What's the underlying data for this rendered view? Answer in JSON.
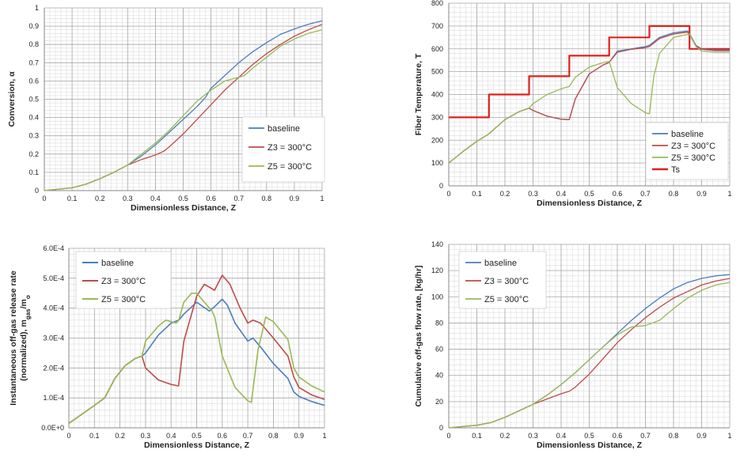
{
  "colors": {
    "baseline": "#4a7ebb",
    "z3": "#be4b48",
    "z5": "#98b954",
    "ts": "#e0201b",
    "grid": "#bdbdbd"
  },
  "chart_data": [
    {
      "type": "line",
      "id": "conversion",
      "title": "",
      "xlabel": "Dimensionless Distance, Z",
      "ylabel": "Conversion, α",
      "xlim": [
        0,
        1
      ],
      "ylim": [
        0,
        1
      ],
      "xticks": [
        "0",
        "0.1",
        "0.2",
        "0.3",
        "0.4",
        "0.5",
        "0.6",
        "0.7",
        "0.8",
        "0.9",
        "1"
      ],
      "yticks": [
        "0",
        "0.1",
        "0.2",
        "0.3",
        "0.4",
        "0.5",
        "0.6",
        "0.7",
        "0.8",
        "0.9",
        "1"
      ],
      "legend": [
        "baseline",
        "Z3 = 300°C",
        "Z5 = 300°C"
      ],
      "series": [
        {
          "name": "baseline",
          "color_key": "baseline",
          "width": 1.3,
          "x": [
            0,
            0.1,
            0.15,
            0.2,
            0.25,
            0.3,
            0.35,
            0.4,
            0.45,
            0.5,
            0.55,
            0.58,
            0.6,
            0.65,
            0.7,
            0.75,
            0.8,
            0.85,
            0.9,
            0.95,
            1.0
          ],
          "y": [
            0,
            0.015,
            0.035,
            0.065,
            0.1,
            0.14,
            0.19,
            0.25,
            0.32,
            0.39,
            0.46,
            0.51,
            0.56,
            0.63,
            0.7,
            0.76,
            0.81,
            0.855,
            0.885,
            0.91,
            0.93
          ]
        },
        {
          "name": "Z3 = 300°C",
          "color_key": "z3",
          "width": 1.3,
          "x": [
            0,
            0.1,
            0.15,
            0.2,
            0.25,
            0.3,
            0.35,
            0.4,
            0.43,
            0.45,
            0.5,
            0.55,
            0.6,
            0.65,
            0.7,
            0.75,
            0.8,
            0.85,
            0.9,
            0.95,
            1.0
          ],
          "y": [
            0,
            0.015,
            0.035,
            0.065,
            0.1,
            0.14,
            0.17,
            0.195,
            0.215,
            0.24,
            0.31,
            0.39,
            0.47,
            0.55,
            0.62,
            0.69,
            0.75,
            0.8,
            0.845,
            0.88,
            0.91
          ]
        },
        {
          "name": "Z5 = 300°C",
          "color_key": "z5",
          "width": 1.3,
          "x": [
            0,
            0.1,
            0.15,
            0.2,
            0.25,
            0.3,
            0.35,
            0.4,
            0.45,
            0.5,
            0.55,
            0.6,
            0.65,
            0.7,
            0.72,
            0.75,
            0.8,
            0.85,
            0.9,
            0.95,
            1.0
          ],
          "y": [
            0,
            0.015,
            0.035,
            0.065,
            0.1,
            0.14,
            0.2,
            0.26,
            0.33,
            0.41,
            0.49,
            0.55,
            0.6,
            0.62,
            0.63,
            0.67,
            0.73,
            0.79,
            0.83,
            0.86,
            0.88
          ]
        }
      ]
    },
    {
      "type": "line",
      "id": "fiber-temperature",
      "title": "",
      "xlabel": "Dimensionless Distance, Z",
      "ylabel": "Fiber Temperature, T",
      "xlim": [
        0,
        1
      ],
      "ylim": [
        0,
        800
      ],
      "xticks": [
        "0",
        "0.1",
        "0.2",
        "0.3",
        "0.4",
        "0.5",
        "0.6",
        "0.7",
        "0.8",
        "0.9",
        "1"
      ],
      "yticks": [
        "0",
        "100",
        "200",
        "300",
        "400",
        "500",
        "600",
        "700",
        "800"
      ],
      "legend": [
        "baseline",
        "Z3 = 300°C",
        "Z5 = 300°C",
        "Ts"
      ],
      "series": [
        {
          "name": "Ts",
          "color_key": "ts",
          "width": 2.2,
          "x": [
            0,
            0.143,
            0.143,
            0.286,
            0.286,
            0.429,
            0.429,
            0.571,
            0.571,
            0.714,
            0.714,
            0.857,
            0.857,
            1.0
          ],
          "y": [
            300,
            300,
            400,
            400,
            480,
            480,
            570,
            570,
            650,
            650,
            700,
            700,
            600,
            600
          ]
        },
        {
          "name": "baseline",
          "color_key": "baseline",
          "width": 1.3,
          "x": [
            0,
            0.05,
            0.1,
            0.14,
            0.2,
            0.25,
            0.286,
            0.3,
            0.35,
            0.4,
            0.429,
            0.45,
            0.5,
            0.55,
            0.57,
            0.6,
            0.65,
            0.7,
            0.714,
            0.75,
            0.8,
            0.85,
            0.86,
            0.88,
            0.9,
            0.95,
            1.0
          ],
          "y": [
            100,
            150,
            195,
            225,
            290,
            325,
            340,
            330,
            305,
            292,
            290,
            380,
            490,
            530,
            540,
            590,
            600,
            610,
            615,
            650,
            670,
            678,
            660,
            615,
            600,
            595,
            595
          ]
        },
        {
          "name": "Z3 = 300°C",
          "color_key": "z3",
          "width": 1.3,
          "x": [
            0,
            0.05,
            0.1,
            0.14,
            0.2,
            0.25,
            0.286,
            0.3,
            0.35,
            0.4,
            0.429,
            0.45,
            0.5,
            0.55,
            0.57,
            0.6,
            0.65,
            0.7,
            0.714,
            0.75,
            0.8,
            0.85,
            0.86,
            0.88,
            0.9,
            0.95,
            1.0
          ],
          "y": [
            100,
            150,
            195,
            225,
            290,
            325,
            340,
            330,
            305,
            292,
            290,
            380,
            490,
            530,
            540,
            585,
            598,
            605,
            610,
            645,
            665,
            673,
            655,
            612,
            598,
            592,
            592
          ]
        },
        {
          "name": "Z5 = 300°C",
          "color_key": "z5",
          "width": 1.3,
          "x": [
            0,
            0.05,
            0.1,
            0.14,
            0.2,
            0.25,
            0.286,
            0.3,
            0.35,
            0.4,
            0.429,
            0.45,
            0.5,
            0.55,
            0.571,
            0.6,
            0.65,
            0.7,
            0.714,
            0.73,
            0.75,
            0.8,
            0.857,
            0.88,
            0.9,
            0.95,
            1.0
          ],
          "y": [
            100,
            150,
            195,
            225,
            290,
            325,
            340,
            360,
            400,
            425,
            435,
            475,
            520,
            540,
            545,
            430,
            360,
            320,
            315,
            480,
            580,
            650,
            665,
            610,
            590,
            585,
            585
          ]
        }
      ]
    },
    {
      "type": "line",
      "id": "off-gas-release-rate",
      "title": "",
      "xlabel": "Dimensionless Distance, Z",
      "ylabel": "Instantaneous off-gas release rate (normalized), mgas/mo",
      "xlim": [
        0,
        1
      ],
      "ylim": [
        0,
        0.0006
      ],
      "xticks": [
        "0",
        "0.1",
        "0.2",
        "0.3",
        "0.4",
        "0.5",
        "0.6",
        "0.7",
        "0.8",
        "0.9",
        "1"
      ],
      "yticks": [
        "0.0E+0",
        "1.0E-4",
        "2.0E-4",
        "3.0E-4",
        "4.0E-4",
        "5.0E-4",
        "6.0E-4"
      ],
      "legend": [
        "baseline",
        "Z3 = 300°C",
        "Z5 = 300°C"
      ],
      "series": [
        {
          "name": "baseline",
          "color_key": "baseline",
          "width": 1.6,
          "x": [
            0,
            0.05,
            0.1,
            0.14,
            0.18,
            0.22,
            0.26,
            0.286,
            0.3,
            0.35,
            0.4,
            0.43,
            0.45,
            0.5,
            0.55,
            0.57,
            0.6,
            0.62,
            0.65,
            0.7,
            0.72,
            0.75,
            0.8,
            0.857,
            0.88,
            0.9,
            0.95,
            1.0
          ],
          "y": [
            1.5e-05,
            4.5e-05,
            7.5e-05,
            0.0001,
            0.000165,
            0.000208,
            0.000232,
            0.00024,
            0.00025,
            0.00031,
            0.00035,
            0.00036,
            0.00038,
            0.00042,
            0.00039,
            0.000405,
            0.00043,
            0.00041,
            0.00035,
            0.00029,
            0.0003,
            0.00027,
            0.000215,
            0.000165,
            0.00012,
            0.000105,
            8.8e-05,
            7.5e-05
          ]
        },
        {
          "name": "Z3 = 300°C",
          "color_key": "z3",
          "width": 1.6,
          "x": [
            0,
            0.05,
            0.1,
            0.14,
            0.18,
            0.22,
            0.26,
            0.286,
            0.3,
            0.35,
            0.4,
            0.429,
            0.45,
            0.5,
            0.53,
            0.57,
            0.6,
            0.63,
            0.67,
            0.7,
            0.72,
            0.75,
            0.8,
            0.857,
            0.88,
            0.9,
            0.95,
            1.0
          ],
          "y": [
            1.5e-05,
            4.5e-05,
            7.5e-05,
            0.0001,
            0.000165,
            0.000208,
            0.000232,
            0.00024,
            0.0002,
            0.00016,
            0.000145,
            0.00014,
            0.00029,
            0.00044,
            0.00048,
            0.00046,
            0.00051,
            0.00048,
            0.0004,
            0.00035,
            0.00036,
            0.00035,
            0.0003,
            0.00024,
            0.00017,
            0.000135,
            0.00011,
            9.5e-05
          ]
        },
        {
          "name": "Z5 = 300°C",
          "color_key": "z5",
          "width": 1.6,
          "x": [
            0,
            0.05,
            0.1,
            0.14,
            0.18,
            0.22,
            0.26,
            0.286,
            0.3,
            0.35,
            0.38,
            0.42,
            0.43,
            0.45,
            0.48,
            0.5,
            0.52,
            0.56,
            0.571,
            0.6,
            0.65,
            0.7,
            0.714,
            0.74,
            0.77,
            0.8,
            0.857,
            0.88,
            0.9,
            0.95,
            1.0
          ],
          "y": [
            1.5e-05,
            4.5e-05,
            7.5e-05,
            0.0001,
            0.000165,
            0.000208,
            0.000232,
            0.00024,
            0.00029,
            0.00034,
            0.00036,
            0.00035,
            0.00036,
            0.00042,
            0.00045,
            0.00045,
            0.00043,
            0.00039,
            0.00037,
            0.00024,
            0.000135,
            9e-05,
            8.5e-05,
            0.00026,
            0.00037,
            0.000355,
            0.000295,
            0.0002,
            0.00017,
            0.00014,
            0.00012
          ]
        }
      ]
    },
    {
      "type": "line",
      "id": "cumulative-off-gas",
      "title": "",
      "xlabel": "Dimensionless Distance, Z",
      "ylabel": "Cumulative off-gas flow rate, [kg/hr]",
      "xlim": [
        0,
        1
      ],
      "ylim": [
        0,
        140
      ],
      "xticks": [
        "0",
        "0.1",
        "0.2",
        "0.3",
        "0.4",
        "0.5",
        "0.6",
        "0.7",
        "0.8",
        "0.9",
        "1"
      ],
      "yticks": [
        "0",
        "20",
        "40",
        "60",
        "80",
        "100",
        "120",
        "140"
      ],
      "legend": [
        "baseline",
        "Z3 = 300°C",
        "Z5 = 300°C"
      ],
      "series": [
        {
          "name": "baseline",
          "color_key": "baseline",
          "width": 1.3,
          "x": [
            0,
            0.1,
            0.15,
            0.2,
            0.25,
            0.3,
            0.35,
            0.4,
            0.45,
            0.5,
            0.55,
            0.6,
            0.65,
            0.7,
            0.75,
            0.8,
            0.85,
            0.9,
            0.95,
            1.0
          ],
          "y": [
            0,
            2,
            4,
            8,
            13,
            18,
            25,
            33,
            42,
            52,
            62,
            72,
            82,
            91,
            99,
            106,
            111,
            114,
            116,
            117
          ]
        },
        {
          "name": "Z3 = 300°C",
          "color_key": "z3",
          "width": 1.3,
          "x": [
            0,
            0.1,
            0.15,
            0.2,
            0.25,
            0.3,
            0.35,
            0.4,
            0.43,
            0.45,
            0.5,
            0.55,
            0.6,
            0.65,
            0.7,
            0.75,
            0.8,
            0.85,
            0.9,
            0.95,
            1.0
          ],
          "y": [
            0,
            2,
            4,
            8,
            13,
            18,
            22,
            26,
            28,
            31,
            41,
            53,
            65,
            75,
            84,
            92,
            99,
            104,
            109,
            112,
            114
          ]
        },
        {
          "name": "Z5 = 300°C",
          "color_key": "z5",
          "width": 1.3,
          "x": [
            0,
            0.1,
            0.15,
            0.2,
            0.25,
            0.3,
            0.35,
            0.4,
            0.45,
            0.5,
            0.55,
            0.6,
            0.65,
            0.7,
            0.75,
            0.8,
            0.85,
            0.9,
            0.95,
            1.0
          ],
          "y": [
            0,
            2,
            4,
            8,
            13,
            18,
            25,
            33,
            42,
            52,
            62,
            71,
            77,
            78,
            82,
            91,
            99,
            105,
            109,
            111
          ]
        }
      ]
    }
  ]
}
